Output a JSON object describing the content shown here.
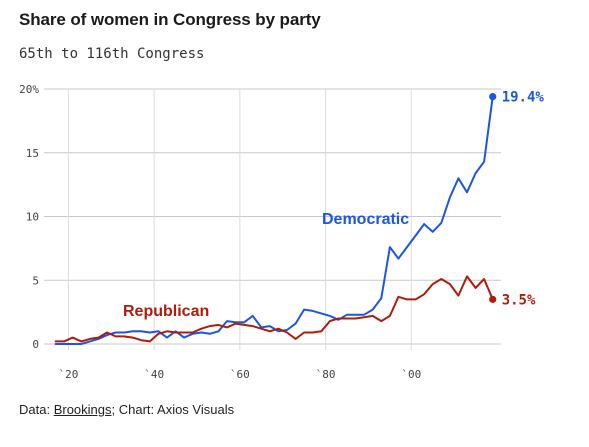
{
  "header": {
    "title": "Share of women in Congress by party",
    "subtitle": "65th to 116th Congress"
  },
  "footer": {
    "prefix": "Data: ",
    "source": "Brookings",
    "suffix": "; Chart: Axios Visuals"
  },
  "chart_data": {
    "type": "line",
    "title": "Share of women in Congress by party",
    "subtitle": "65th to 116th Congress",
    "xlabel": "",
    "ylabel": "",
    "xlim": [
      1915,
      2020
    ],
    "ylim": [
      0,
      20
    ],
    "grid": true,
    "x_ticks": [
      1920,
      1940,
      1960,
      1980,
      2000
    ],
    "x_tick_labels": [
      "`20",
      "`40",
      "`60",
      "`80",
      "`00"
    ],
    "y_ticks": [
      0,
      5,
      10,
      15,
      20
    ],
    "y_tick_labels": [
      "0",
      "5",
      "10",
      "15",
      "20%"
    ],
    "colors": {
      "Democratic": "#1a56e8",
      "Republican": "#b01c0c"
    },
    "series": [
      {
        "name": "Democratic",
        "x": [
          1917,
          1919,
          1921,
          1923,
          1925,
          1927,
          1929,
          1931,
          1933,
          1935,
          1937,
          1939,
          1941,
          1943,
          1945,
          1947,
          1949,
          1951,
          1953,
          1955,
          1957,
          1959,
          1961,
          1963,
          1965,
          1967,
          1969,
          1971,
          1973,
          1975,
          1977,
          1979,
          1981,
          1983,
          1985,
          1987,
          1989,
          1991,
          1993,
          1995,
          1997,
          1999,
          2001,
          2003,
          2005,
          2007,
          2009,
          2011,
          2013,
          2015,
          2017,
          2019
        ],
        "values": [
          0.0,
          0.0,
          0.0,
          0.0,
          0.2,
          0.4,
          0.7,
          0.9,
          0.9,
          1.0,
          1.0,
          0.9,
          1.0,
          0.5,
          1.0,
          0.5,
          0.8,
          0.9,
          0.8,
          1.0,
          1.8,
          1.7,
          1.7,
          2.2,
          1.3,
          1.4,
          1.0,
          1.1,
          1.6,
          2.7,
          2.6,
          2.4,
          2.2,
          1.9,
          2.3,
          2.3,
          2.3,
          2.7,
          3.6,
          7.6,
          6.7,
          7.6,
          8.5,
          9.4,
          8.8,
          9.5,
          11.5,
          13.0,
          11.9,
          13.4,
          14.3,
          19.4
        ],
        "end_label": "19.4%"
      },
      {
        "name": "Republican",
        "x": [
          1917,
          1919,
          1921,
          1923,
          1925,
          1927,
          1929,
          1931,
          1933,
          1935,
          1937,
          1939,
          1941,
          1943,
          1945,
          1947,
          1949,
          1951,
          1953,
          1955,
          1957,
          1959,
          1961,
          1963,
          1965,
          1967,
          1969,
          1971,
          1973,
          1975,
          1977,
          1979,
          1981,
          1983,
          1985,
          1987,
          1989,
          1991,
          1993,
          1995,
          1997,
          1999,
          2001,
          2003,
          2005,
          2007,
          2009,
          2011,
          2013,
          2015,
          2017,
          2019
        ],
        "values": [
          0.2,
          0.2,
          0.5,
          0.2,
          0.4,
          0.5,
          0.9,
          0.6,
          0.6,
          0.5,
          0.3,
          0.2,
          0.8,
          1.0,
          0.9,
          0.9,
          0.9,
          1.2,
          1.4,
          1.5,
          1.3,
          1.6,
          1.5,
          1.4,
          1.2,
          1.0,
          1.2,
          0.9,
          0.4,
          0.9,
          0.9,
          1.0,
          1.8,
          2.0,
          2.0,
          2.0,
          2.1,
          2.2,
          1.8,
          2.2,
          3.7,
          3.5,
          3.5,
          3.9,
          4.7,
          5.1,
          4.7,
          3.8,
          5.3,
          4.4,
          5.1,
          3.5
        ],
        "end_label": "3.5%"
      }
    ]
  }
}
